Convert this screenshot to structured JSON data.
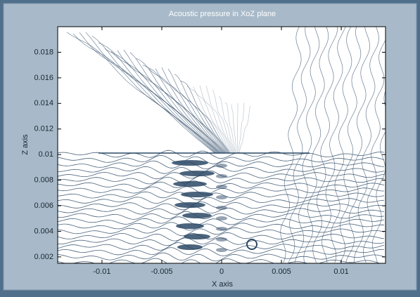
{
  "chart_data": {
    "type": "contour",
    "title": "Acoustic pressure in XoZ plane",
    "x_label": "X axis",
    "y_label": "Z axis",
    "xlim": [
      -0.0137,
      0.0137
    ],
    "xticks": [
      -0.01,
      -0.005,
      0,
      0.005,
      0.01
    ],
    "ylim": [
      0.0015,
      0.02
    ],
    "yticks": [
      0.002,
      0.004,
      0.006,
      0.008,
      0.01,
      0.012,
      0.014,
      0.016,
      0.018
    ],
    "color": "#2b4865"
  }
}
